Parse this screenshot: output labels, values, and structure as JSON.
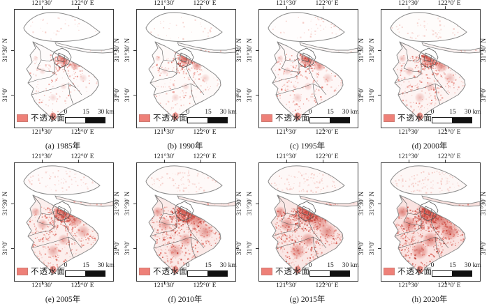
{
  "figure": {
    "kind": "map-grid",
    "rows": 2,
    "cols": 4
  },
  "axes": {
    "top": [
      "121°30′",
      "122°0′ E"
    ],
    "bottom": [
      "121°30′",
      "122°0′ E"
    ],
    "left": [
      "31°30′ N",
      "31°0′"
    ],
    "right": [
      "31°30′ N",
      "31°0′"
    ]
  },
  "legend": {
    "label": "不透水面"
  },
  "scalebar": {
    "labels": [
      "0",
      "15",
      "30 km"
    ]
  },
  "panels": [
    {
      "key": "a",
      "caption": "(a) 1985年",
      "intensity": 0.1,
      "seed": 11
    },
    {
      "key": "b",
      "caption": "(b) 1990年",
      "intensity": 0.13,
      "seed": 22
    },
    {
      "key": "c",
      "caption": "(c) 1995年",
      "intensity": 0.2,
      "seed": 33
    },
    {
      "key": "d",
      "caption": "(d) 2000年",
      "intensity": 0.28,
      "seed": 44
    },
    {
      "key": "e",
      "caption": "(e) 2005年",
      "intensity": 0.42,
      "seed": 55
    },
    {
      "key": "f",
      "caption": "(f) 2010年",
      "intensity": 0.55,
      "seed": 66
    },
    {
      "key": "g",
      "caption": "(g) 2015年",
      "intensity": 0.62,
      "seed": 77
    },
    {
      "key": "h",
      "caption": "(h) 2020年",
      "intensity": 0.72,
      "seed": 88
    }
  ],
  "chart_data": {
    "type": "map-series",
    "variable": "不透水面",
    "years": [
      1985,
      1990,
      1995,
      2000,
      2005,
      2010,
      2015,
      2020
    ],
    "panel_labels": [
      "(a) 1985年",
      "(b) 1990年",
      "(c) 1995年",
      "(d) 2000年",
      "(e) 2005年",
      "(f) 2010年",
      "(g) 2015年",
      "(h) 2020年"
    ],
    "estimated_relative_coverage": [
      0.1,
      0.13,
      0.2,
      0.28,
      0.42,
      0.55,
      0.62,
      0.72
    ]
  },
  "colors": {
    "impervious": "#ee8078",
    "impervious_dark": "#c7463d",
    "impervious_mid": "#e0736a",
    "impervious_light": "#f5cbc6",
    "wash": "#eda39a",
    "coastline": "#8a8a8a",
    "district_line": "#5a5a5a",
    "frame": "#3a3a3a",
    "text": "#1b1b1b"
  }
}
